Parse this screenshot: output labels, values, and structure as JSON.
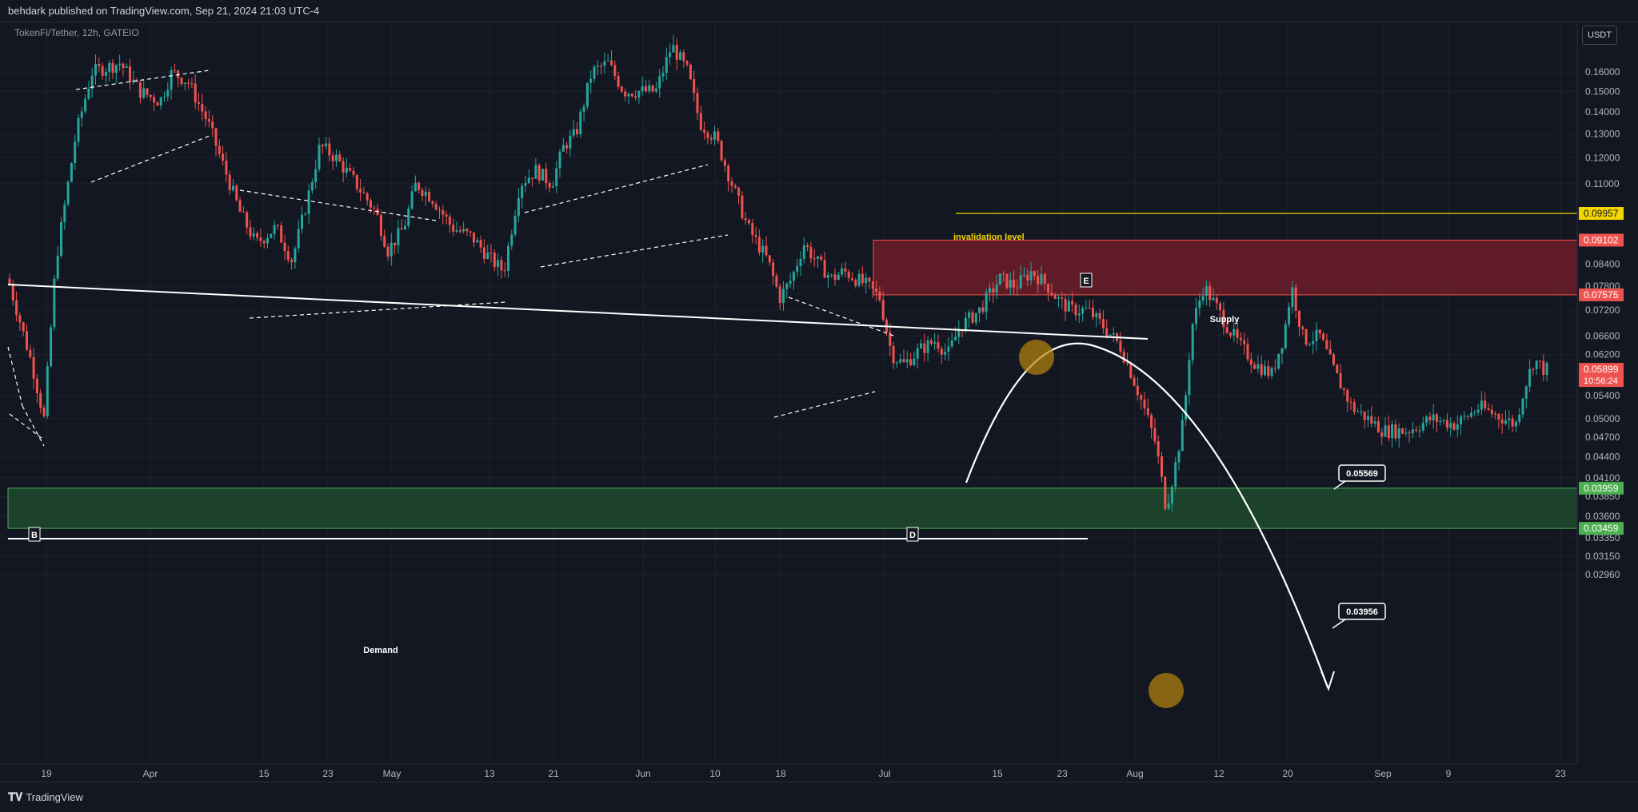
{
  "header": {
    "published_by": "behdark published on TradingView.com, Sep 21, 2024 21:03 UTC-4"
  },
  "chart": {
    "symbol_legend": "TokenFi/Tether, 12h, GATEIO",
    "unit_label": "USDT"
  },
  "footer": {
    "logo_text": "TradingView"
  },
  "colors": {
    "background": "#131722",
    "up": "#26a69a",
    "down": "#ef5350",
    "supply_zone": "#7a1f2b",
    "demand_zone": "#1f4a2e",
    "invalidation": "#f2d600",
    "highlight_circle": "#b8860b"
  },
  "chart_data": {
    "type": "candlestick",
    "title": "",
    "price_axis": {
      "ticks": [
        "0.16000",
        "0.15000",
        "0.14000",
        "0.13000",
        "0.12000",
        "0.11000",
        "0.08400",
        "0.07800",
        "0.07200",
        "0.06600",
        "0.06200",
        "0.05400",
        "0.05000",
        "0.04700",
        "0.04400",
        "0.04100",
        "0.03850",
        "0.03600",
        "0.03350",
        "0.03150",
        "0.02960"
      ],
      "tick_values": [
        0.16,
        0.15,
        0.14,
        0.13,
        0.12,
        0.11,
        0.084,
        0.078,
        0.072,
        0.066,
        0.062,
        0.054,
        0.05,
        0.047,
        0.044,
        0.041,
        0.0385,
        0.036,
        0.0335,
        0.0315,
        0.0296
      ],
      "scale": "log"
    },
    "time_axis": {
      "ticks": [
        "19",
        "Apr",
        "15",
        "23",
        "May",
        "13",
        "21",
        "Jun",
        "10",
        "18",
        "Jul",
        "15",
        "23",
        "Aug",
        "12",
        "20",
        "Sep",
        "9",
        "23"
      ]
    },
    "price_labels": [
      {
        "value": "0.09957",
        "kind": "invalidation"
      },
      {
        "value": "0.09102",
        "kind": "supply-top"
      },
      {
        "value": "0.07575",
        "kind": "supply-bottom"
      },
      {
        "value": "0.05899",
        "kind": "last",
        "countdown": "10:56:24"
      },
      {
        "value": "0.03959",
        "kind": "demand-top"
      },
      {
        "value": "0.03459",
        "kind": "demand-bottom"
      }
    ],
    "annotations": {
      "invalidation_text": "invalidation level",
      "supply_text": "Supply",
      "demand_text": "Demand",
      "wave_labels": [
        "B",
        "D",
        "E"
      ],
      "target_labels": [
        "0.05569",
        "0.03956"
      ]
    },
    "zones": {
      "supply": [
        0.07575,
        0.09102
      ],
      "demand": [
        0.03459,
        0.03959
      ],
      "invalidation": 0.09957
    }
  }
}
